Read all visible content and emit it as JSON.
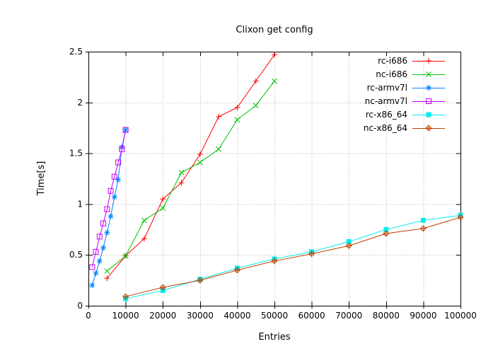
{
  "chart_data": {
    "type": "line",
    "title": "Clixon get config",
    "xlabel": "Entries",
    "ylabel": "Time[s]",
    "xlim": [
      0,
      100000
    ],
    "ylim": [
      0,
      2.5
    ],
    "grid": true,
    "grid_color": "#b4b4b4",
    "axis_color": "#000000",
    "legend_position": "top-right-inside",
    "x_ticks": [
      0,
      10000,
      20000,
      30000,
      40000,
      50000,
      60000,
      70000,
      80000,
      90000,
      100000
    ],
    "x_tick_labels": [
      "0",
      "10000",
      "20000",
      "30000",
      "40000",
      "50000",
      "60000",
      "70000",
      "80000",
      "90000",
      "100000"
    ],
    "y_ticks": [
      0,
      0.5,
      1,
      1.5,
      2,
      2.5
    ],
    "y_tick_labels": [
      "0",
      "0.5",
      "1",
      "1.5",
      "2",
      "2.5"
    ],
    "series": [
      {
        "name": "rc-i686",
        "color": "#ff0000",
        "marker": "plus",
        "x": [
          5000,
          10000,
          15000,
          20000,
          25000,
          30000,
          35000,
          40000,
          45000,
          50000
        ],
        "y": [
          0.27,
          0.49,
          0.66,
          1.05,
          1.21,
          1.49,
          1.86,
          1.95,
          2.21,
          2.47
        ]
      },
      {
        "name": "nc-i686",
        "color": "#00c000",
        "marker": "cross",
        "x": [
          5000,
          10000,
          15000,
          20000,
          25000,
          30000,
          35000,
          40000,
          45000,
          50000
        ],
        "y": [
          0.34,
          0.49,
          0.84,
          0.96,
          1.31,
          1.41,
          1.54,
          1.83,
          1.97,
          2.21
        ]
      },
      {
        "name": "rc-armv7l",
        "color": "#0080ff",
        "marker": "asterisk",
        "x": [
          1000,
          2000,
          3000,
          4000,
          5000,
          6000,
          7000,
          8000,
          9000,
          10000
        ],
        "y": [
          0.2,
          0.32,
          0.44,
          0.57,
          0.72,
          0.88,
          1.07,
          1.24,
          1.56,
          1.73
        ]
      },
      {
        "name": "nc-armv7l",
        "color": "#c000ff",
        "marker": "square-open",
        "x": [
          1000,
          2000,
          3000,
          4000,
          5000,
          6000,
          7000,
          8000,
          9000,
          10000
        ],
        "y": [
          0.38,
          0.53,
          0.68,
          0.81,
          0.95,
          1.13,
          1.27,
          1.41,
          1.54,
          1.73
        ]
      },
      {
        "name": "rc-x86_64",
        "color": "#00eeee",
        "marker": "square-filled",
        "x": [
          10000,
          20000,
          30000,
          40000,
          50000,
          60000,
          70000,
          80000,
          90000,
          100000
        ],
        "y": [
          0.07,
          0.15,
          0.26,
          0.37,
          0.46,
          0.53,
          0.63,
          0.75,
          0.84,
          0.89
        ]
      },
      {
        "name": "nc-x86_64",
        "color": "#c04000",
        "marker": "circle-open",
        "x": [
          10000,
          20000,
          30000,
          40000,
          50000,
          60000,
          70000,
          80000,
          90000,
          100000
        ],
        "y": [
          0.09,
          0.18,
          0.25,
          0.35,
          0.44,
          0.51,
          0.59,
          0.71,
          0.76,
          0.87
        ]
      }
    ]
  }
}
